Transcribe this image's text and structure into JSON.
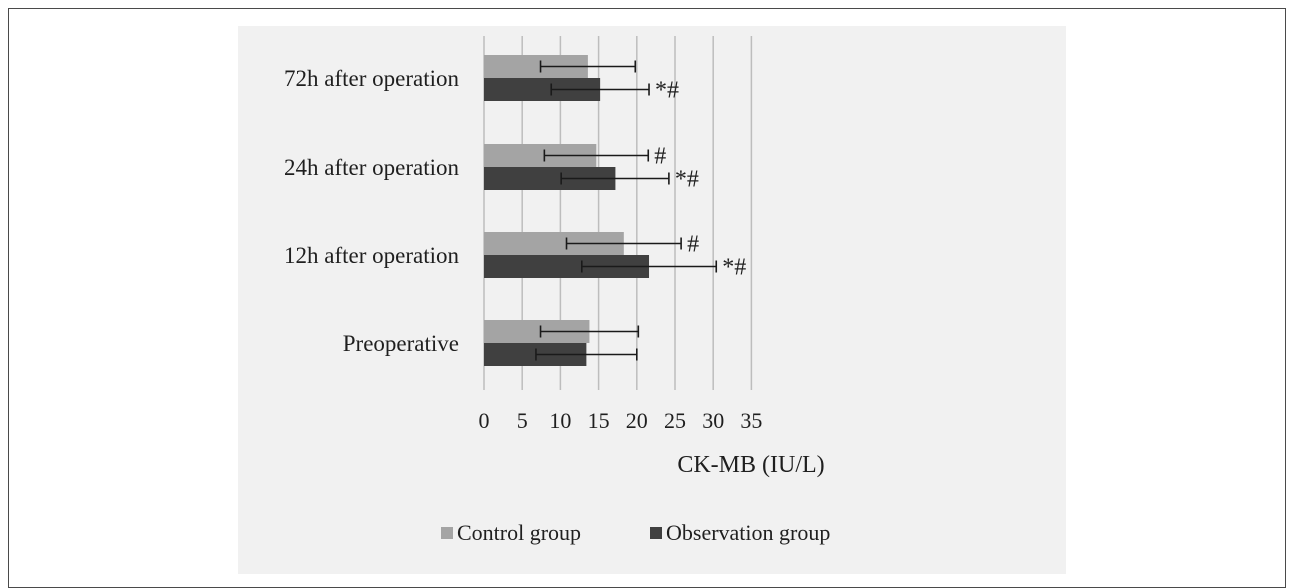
{
  "chart_data": {
    "type": "bar",
    "orientation": "horizontal",
    "categories": [
      "72h after operation",
      "24h after operation",
      "12h after operation",
      "Preoperative"
    ],
    "series": [
      {
        "name": "Control group",
        "color": "#a4a4a4",
        "values": [
          13.6,
          14.7,
          18.3,
          13.8
        ],
        "error_low": [
          7.4,
          7.9,
          10.8,
          7.4
        ],
        "error_high": [
          19.8,
          21.5,
          25.8,
          20.2
        ],
        "annotations": [
          "",
          "#",
          "#",
          ""
        ]
      },
      {
        "name": "Observation group",
        "color": "#404040",
        "values": [
          15.2,
          17.2,
          21.6,
          13.4
        ],
        "error_low": [
          8.8,
          10.1,
          12.8,
          6.8
        ],
        "error_high": [
          21.6,
          24.2,
          30.4,
          20.0
        ],
        "annotations": [
          "*#",
          "*#",
          "*#",
          ""
        ]
      }
    ],
    "xlabel": "CK-MB (IU/L)",
    "xlim": [
      0,
      35
    ],
    "xticks": [
      0,
      5,
      10,
      15,
      20,
      25,
      30,
      35
    ],
    "grid": "vertical",
    "legend_position": "bottom"
  }
}
